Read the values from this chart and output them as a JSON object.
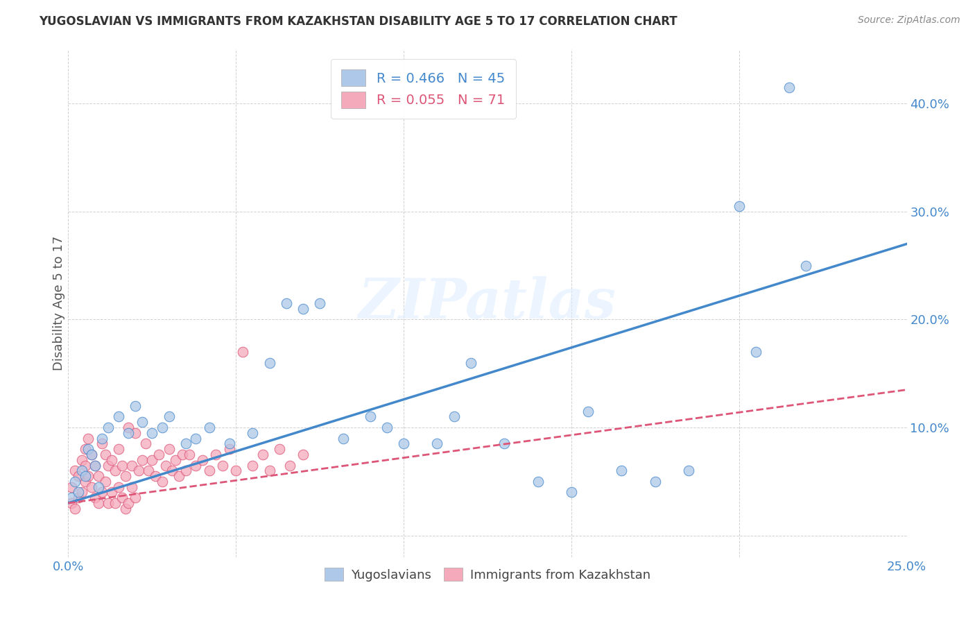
{
  "title": "YUGOSLAVIAN VS IMMIGRANTS FROM KAZAKHSTAN DISABILITY AGE 5 TO 17 CORRELATION CHART",
  "source": "Source: ZipAtlas.com",
  "ylabel": "Disability Age 5 to 17",
  "xlim": [
    0.0,
    0.25
  ],
  "ylim": [
    -0.02,
    0.45
  ],
  "xticks": [
    0.0,
    0.05,
    0.1,
    0.15,
    0.2,
    0.25
  ],
  "yticks": [
    0.0,
    0.1,
    0.2,
    0.3,
    0.4
  ],
  "ytick_labels": [
    "",
    "10.0%",
    "20.0%",
    "30.0%",
    "40.0%"
  ],
  "xtick_labels": [
    "0.0%",
    "",
    "",
    "",
    "",
    "25.0%"
  ],
  "blue_R": 0.466,
  "blue_N": 45,
  "pink_R": 0.055,
  "pink_N": 71,
  "blue_color": "#adc8e8",
  "pink_color": "#f5aabb",
  "blue_line_color": "#4488cc",
  "pink_line_color": "#dd5577",
  "watermark": "ZIPatlas",
  "blue_x": [
    0.001,
    0.002,
    0.003,
    0.004,
    0.005,
    0.006,
    0.007,
    0.008,
    0.009,
    0.01,
    0.012,
    0.015,
    0.018,
    0.02,
    0.022,
    0.025,
    0.028,
    0.03,
    0.035,
    0.038,
    0.042,
    0.048,
    0.055,
    0.06,
    0.065,
    0.07,
    0.075,
    0.082,
    0.09,
    0.095,
    0.1,
    0.11,
    0.115,
    0.12,
    0.13,
    0.14,
    0.15,
    0.155,
    0.165,
    0.175,
    0.185,
    0.2,
    0.205,
    0.215,
    0.22
  ],
  "blue_y": [
    0.035,
    0.05,
    0.04,
    0.06,
    0.055,
    0.08,
    0.075,
    0.065,
    0.045,
    0.09,
    0.1,
    0.11,
    0.095,
    0.12,
    0.105,
    0.095,
    0.1,
    0.11,
    0.085,
    0.09,
    0.1,
    0.085,
    0.095,
    0.16,
    0.215,
    0.21,
    0.215,
    0.09,
    0.11,
    0.1,
    0.085,
    0.085,
    0.11,
    0.16,
    0.085,
    0.05,
    0.04,
    0.115,
    0.06,
    0.05,
    0.06,
    0.305,
    0.17,
    0.415,
    0.25
  ],
  "pink_x": [
    0.001,
    0.001,
    0.002,
    0.002,
    0.003,
    0.003,
    0.004,
    0.004,
    0.005,
    0.005,
    0.005,
    0.006,
    0.006,
    0.007,
    0.007,
    0.008,
    0.008,
    0.009,
    0.009,
    0.01,
    0.01,
    0.011,
    0.011,
    0.012,
    0.012,
    0.013,
    0.013,
    0.014,
    0.014,
    0.015,
    0.015,
    0.016,
    0.016,
    0.017,
    0.017,
    0.018,
    0.018,
    0.019,
    0.019,
    0.02,
    0.02,
    0.021,
    0.022,
    0.023,
    0.024,
    0.025,
    0.026,
    0.027,
    0.028,
    0.029,
    0.03,
    0.031,
    0.032,
    0.033,
    0.034,
    0.035,
    0.036,
    0.038,
    0.04,
    0.042,
    0.044,
    0.046,
    0.048,
    0.05,
    0.052,
    0.055,
    0.058,
    0.06,
    0.063,
    0.066,
    0.07
  ],
  "pink_y": [
    0.03,
    0.045,
    0.025,
    0.06,
    0.035,
    0.055,
    0.04,
    0.07,
    0.05,
    0.065,
    0.08,
    0.055,
    0.09,
    0.045,
    0.075,
    0.035,
    0.065,
    0.03,
    0.055,
    0.04,
    0.085,
    0.05,
    0.075,
    0.03,
    0.065,
    0.04,
    0.07,
    0.03,
    0.06,
    0.045,
    0.08,
    0.035,
    0.065,
    0.025,
    0.055,
    0.03,
    0.1,
    0.045,
    0.065,
    0.035,
    0.095,
    0.06,
    0.07,
    0.085,
    0.06,
    0.07,
    0.055,
    0.075,
    0.05,
    0.065,
    0.08,
    0.06,
    0.07,
    0.055,
    0.075,
    0.06,
    0.075,
    0.065,
    0.07,
    0.06,
    0.075,
    0.065,
    0.08,
    0.06,
    0.17,
    0.065,
    0.075,
    0.06,
    0.08,
    0.065,
    0.075
  ],
  "blue_line_x": [
    0.0,
    0.25
  ],
  "blue_line_y": [
    0.03,
    0.27
  ],
  "pink_line_x": [
    0.0,
    0.25
  ],
  "pink_line_y": [
    0.03,
    0.135
  ]
}
